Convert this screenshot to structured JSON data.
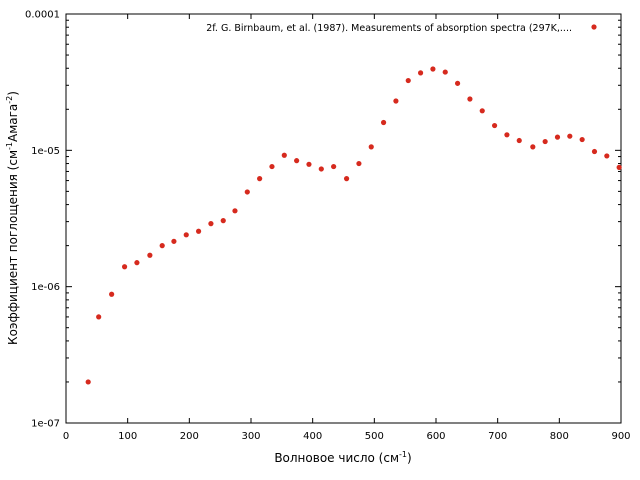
{
  "chart_data": {
    "type": "scatter",
    "xlabel": {
      "base": "Волновое число (см",
      "sup": "-1",
      "tail": ")"
    },
    "ylabel": {
      "base": "Коэффициент поглощения (см",
      "sup1": "-1",
      "mid": "Амага",
      "sup2": "-2",
      "tail": ")"
    },
    "xlim": [
      0,
      900
    ],
    "ylim": [
      1e-07,
      0.0001
    ],
    "yscale": "log",
    "grid": false,
    "legend_position": "top-right",
    "x_ticks": [
      0,
      100,
      200,
      300,
      400,
      500,
      600,
      700,
      800,
      900
    ],
    "x_tick_labels": [
      "0",
      "100",
      "200",
      "300",
      "400",
      "500",
      "600",
      "700",
      "800",
      "900"
    ],
    "y_ticks": [
      1e-07,
      1e-06,
      1e-05,
      0.0001
    ],
    "y_tick_labels": [
      "1e-07",
      "1e-06",
      "1e-05",
      "0.0001"
    ],
    "series": [
      {
        "name": "2f. G. Birnbaum, et al. (1987). Measurements of absorption spectra (297K,....",
        "color": "#d62a1e",
        "x": [
          36,
          53,
          74,
          95,
          115,
          136,
          156,
          175,
          195,
          215,
          235,
          255,
          274,
          294,
          314,
          334,
          354,
          374,
          394,
          414,
          434,
          455,
          475,
          495,
          515,
          535,
          555,
          575,
          595,
          615,
          635,
          655,
          675,
          695,
          715,
          735,
          757,
          777,
          797,
          817,
          837,
          857,
          877,
          897
        ],
        "y": [
          2e-07,
          6e-07,
          8.8e-07,
          1.4e-06,
          1.5e-06,
          1.7e-06,
          2e-06,
          2.15e-06,
          2.4e-06,
          2.55e-06,
          2.9e-06,
          3.05e-06,
          3.6e-06,
          4.95e-06,
          6.2e-06,
          7.6e-06,
          9.2e-06,
          8.4e-06,
          7.9e-06,
          7.3e-06,
          7.6e-06,
          6.2e-06,
          8e-06,
          1.06e-05,
          1.6e-05,
          2.3e-05,
          3.25e-05,
          3.7e-05,
          3.95e-05,
          3.75e-05,
          3.1e-05,
          2.38e-05,
          1.95e-05,
          1.52e-05,
          1.3e-05,
          1.18e-05,
          1.06e-05,
          1.16e-05,
          1.25e-05,
          1.27e-05,
          1.2e-05,
          9.8e-06,
          9.1e-06,
          7.5e-06
        ]
      }
    ]
  }
}
